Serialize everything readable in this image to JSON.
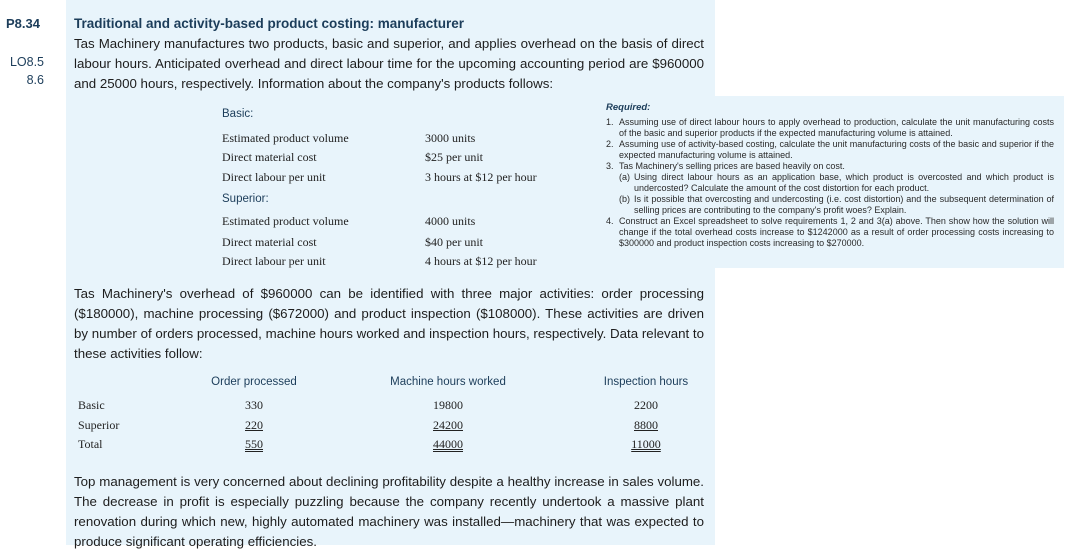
{
  "problem": {
    "number": "P8.34",
    "lo_line1": "LO8.5",
    "lo_line2": "8.6",
    "title": "Traditional and activity-based product costing: manufacturer",
    "intro": "Tas Machinery manufactures two products, basic and superior, and applies overhead on the basis of direct labour hours. Anticipated overhead and direct labour time for the upcoming accounting period are $960000 and 25000 hours, respectively. Information about the company's products follows:"
  },
  "products": {
    "basic": {
      "heading": "Basic:",
      "rows": [
        {
          "label": "Estimated product volume",
          "value": "3000 units"
        },
        {
          "label": "Direct material cost",
          "value": "$25 per unit"
        },
        {
          "label": "Direct labour per unit",
          "value": "3 hours at $12 per hour"
        }
      ]
    },
    "superior": {
      "heading": "Superior:",
      "rows": [
        {
          "label": "Estimated product volume",
          "value": "4000 units"
        },
        {
          "label": "Direct material cost",
          "value": "$40 per unit"
        },
        {
          "label": "Direct labour per unit",
          "value": "4 hours at $12 per hour"
        }
      ]
    }
  },
  "required": {
    "title": "Required:",
    "items": [
      {
        "n": "1.",
        "text": "Assuming use of direct labour hours to apply overhead to production, calculate the unit manufacturing costs of the basic and superior products if the expected manufacturing volume is attained."
      },
      {
        "n": "2.",
        "text": "Assuming use of activity-based costing, calculate the unit manufacturing costs of the basic and superior if the expected manufacturing volume is attained."
      },
      {
        "n": "3.",
        "text": "Tas Machinery's selling prices are based heavily on cost."
      },
      {
        "n": "(a)",
        "text": "Using direct labour hours as an application base, which product is overcosted and which product is undercosted? Calculate the amount of the cost distortion for each product.",
        "sub": true
      },
      {
        "n": "(b)",
        "text": "Is it possible that overcosting and undercosting (i.e. cost distortion) and the subsequent determination of selling prices are contributing to the company's profit woes? Explain.",
        "sub": true
      },
      {
        "n": "4.",
        "text": "Construct an Excel spreadsheet to solve requirements 1, 2 and 3(a) above. Then show how the solution will change if the total overhead costs increase to $1242000 as a result of order processing costs increasing to $300000 and product inspection costs increasing to $270000."
      }
    ]
  },
  "overhead_text": "Tas Machinery's overhead of $960000 can be identified with three major activities: order processing ($180000), machine processing ($672000) and product inspection ($108000). These activities are driven by number of orders processed, machine hours worked and inspection hours, respectively. Data relevant to these activities follow:",
  "activity_table": {
    "headers": [
      "Order processed",
      "Machine hours worked",
      "Inspection hours"
    ],
    "rows": [
      {
        "label": "Basic",
        "values": [
          "330",
          "19800",
          "2200"
        ]
      },
      {
        "label": "Superior",
        "values": [
          "220",
          "24200",
          "8800"
        ]
      },
      {
        "label": "Total",
        "values": [
          "550",
          "44000",
          "11000"
        ]
      }
    ]
  },
  "closing_text": "Top management is very concerned about declining profitability despite a healthy increase in sales volume. The decrease in profit is especially puzzling because the company recently undertook a massive plant renovation during which new, highly automated machinery was installed—machinery that was expected to produce significant operating efficiencies."
}
